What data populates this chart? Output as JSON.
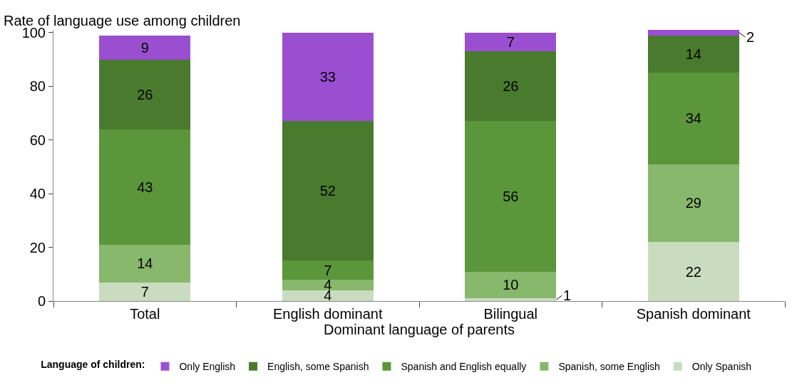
{
  "chart_data": {
    "type": "bar",
    "stacked": true,
    "xlabel": "Dominant language of parents",
    "ylabel": "Rate of language use among children",
    "legend_title": "Language of children:",
    "legend": "bottom",
    "grid": false,
    "data_labels": true,
    "categories": [
      "Total",
      "English dominant",
      "Bilingual",
      "Spanish dominant"
    ],
    "ylim": [
      0,
      101
    ],
    "yticks": [
      0,
      20,
      40,
      60,
      80,
      100
    ],
    "series": [
      {
        "name": "Only Spanish",
        "color": "#c9dcc0",
        "values": [
          7,
          4,
          1,
          22
        ]
      },
      {
        "name": "Spanish, some English",
        "color": "#88b86b",
        "values": [
          14,
          4,
          10,
          29
        ]
      },
      {
        "name": "Spanish and English equally",
        "color": "#5b963a",
        "values": [
          43,
          7,
          56,
          34
        ]
      },
      {
        "name": "English, some Spanish",
        "color": "#4a7a2e",
        "values": [
          26,
          52,
          26,
          14
        ]
      },
      {
        "name": "Only English",
        "color": "#9a4fd0",
        "values": [
          9,
          33,
          7,
          2
        ]
      }
    ]
  }
}
